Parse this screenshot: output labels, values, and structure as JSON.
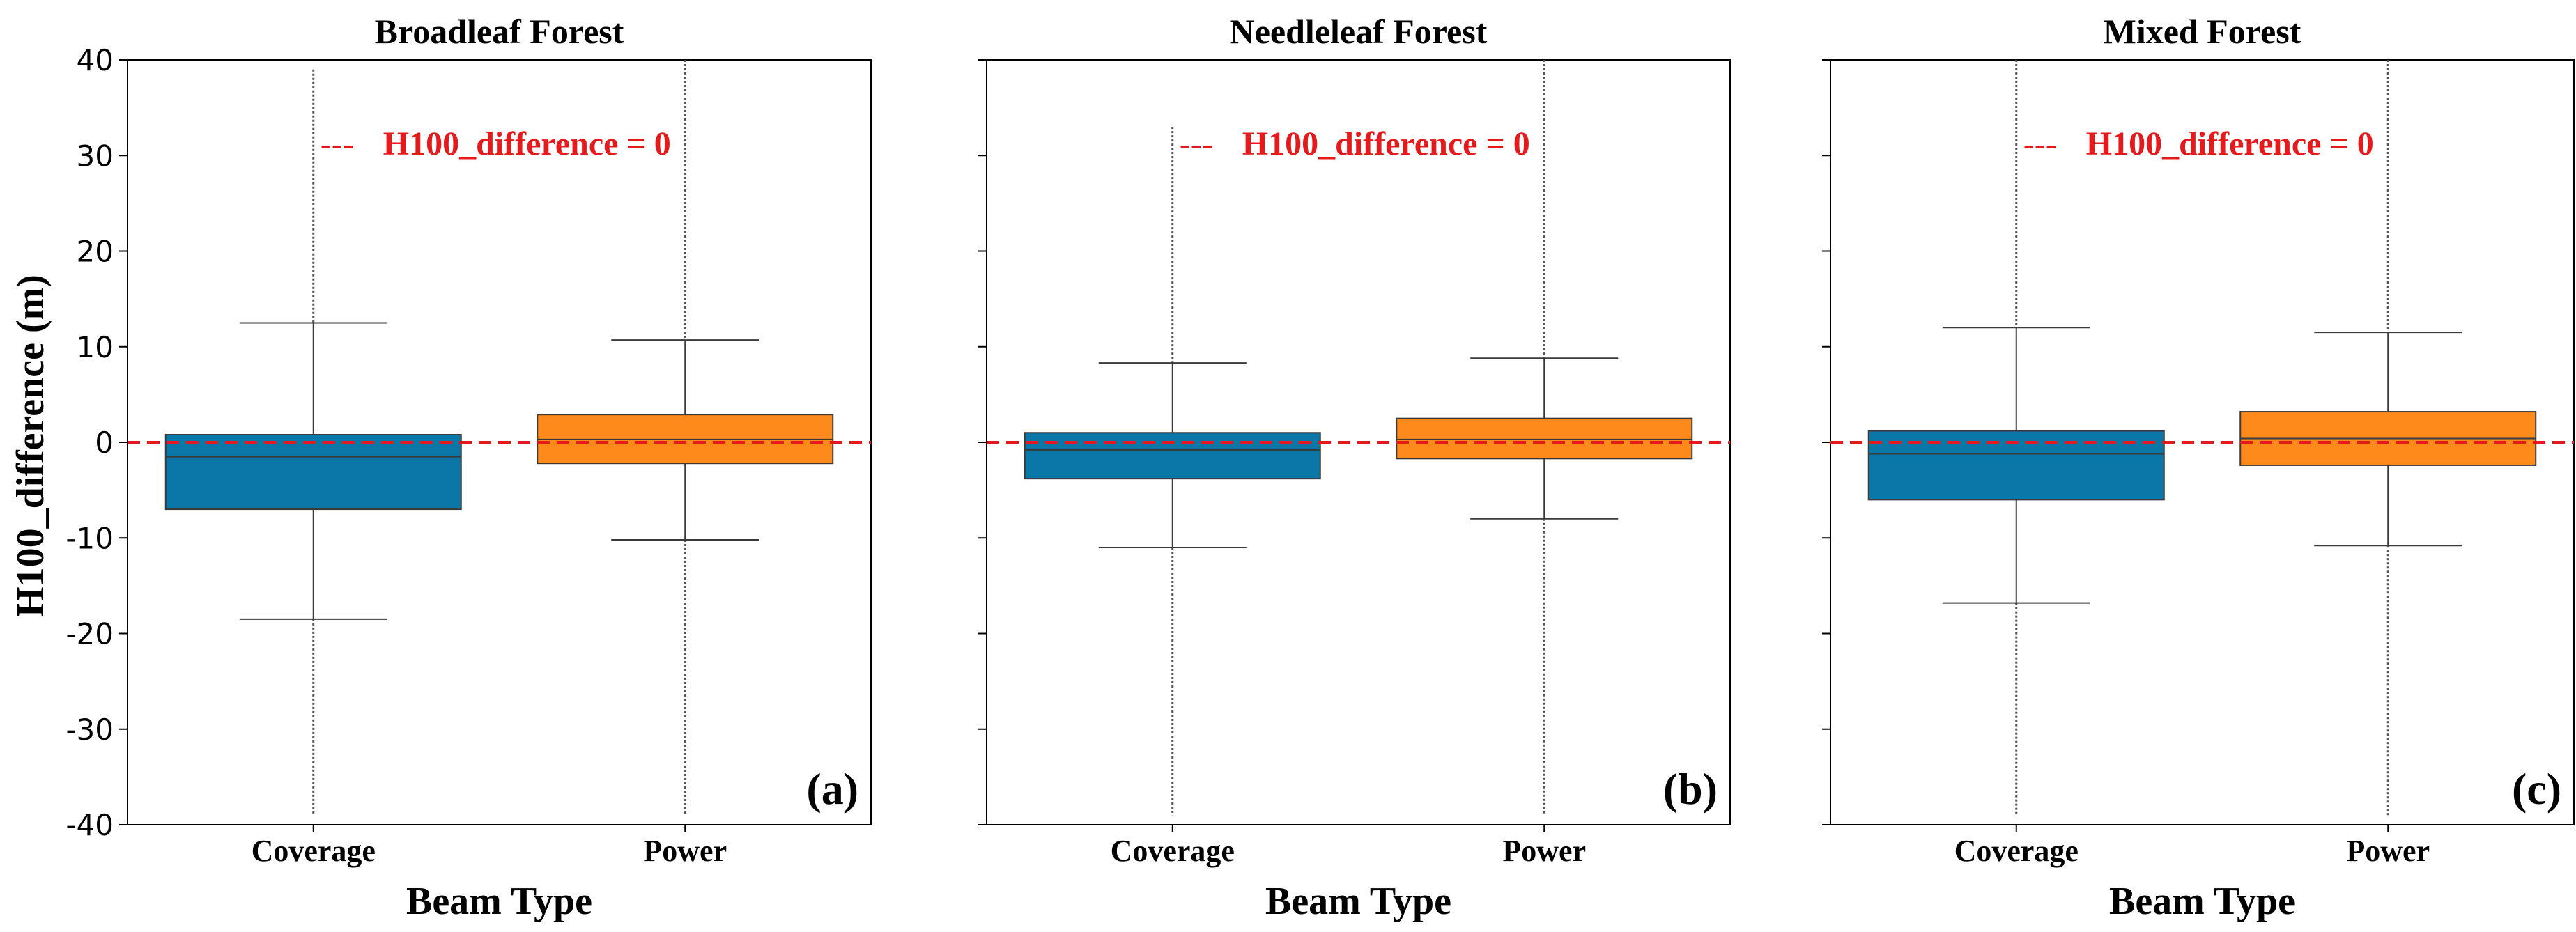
{
  "colors": {
    "coverage": "#0b77a8",
    "power": "#ff8a1c",
    "reference": "#e41a1c",
    "box_edge": "#3a3a3a"
  },
  "shared": {
    "ylabel": "H100_difference (m)",
    "xlabel": "Beam Type",
    "reference_label": "H100_difference = 0",
    "reference_dash": "---"
  },
  "chart_data": [
    {
      "type": "box",
      "title": "Broadleaf Forest",
      "panel_label": "(a)",
      "categories": [
        "Coverage",
        "Power"
      ],
      "ylim": [
        -40,
        40
      ],
      "yticks": [
        -40,
        -30,
        -20,
        -10,
        0,
        10,
        20,
        30,
        40
      ],
      "reference_y": 0,
      "boxes": [
        {
          "category": "Coverage",
          "whisker_low": -18.5,
          "q1": -7.0,
          "median": -1.5,
          "q3": 0.8,
          "whisker_high": 12.5,
          "flier_low": -39,
          "flier_high": 39
        },
        {
          "category": "Power",
          "whisker_low": -10.2,
          "q1": -2.2,
          "median": 0.3,
          "q3": 2.9,
          "whisker_high": 10.7,
          "flier_low": -39,
          "flier_high": 40
        }
      ]
    },
    {
      "type": "box",
      "title": "Needleleaf Forest",
      "panel_label": "(b)",
      "categories": [
        "Coverage",
        "Power"
      ],
      "ylim": [
        -40,
        40
      ],
      "yticks": [
        -40,
        -30,
        -20,
        -10,
        0,
        10,
        20,
        30,
        40
      ],
      "reference_y": 0,
      "boxes": [
        {
          "category": "Coverage",
          "whisker_low": -11.0,
          "q1": -3.8,
          "median": -0.8,
          "q3": 1.0,
          "whisker_high": 8.3,
          "flier_low": -39,
          "flier_high": 33
        },
        {
          "category": "Power",
          "whisker_low": -8.0,
          "q1": -1.7,
          "median": 0.3,
          "q3": 2.5,
          "whisker_high": 8.8,
          "flier_low": -39,
          "flier_high": 40
        }
      ]
    },
    {
      "type": "box",
      "title": "Mixed Forest",
      "panel_label": "(c)",
      "categories": [
        "Coverage",
        "Power"
      ],
      "ylim": [
        -40,
        40
      ],
      "yticks": [
        -40,
        -30,
        -20,
        -10,
        0,
        10,
        20,
        30,
        40
      ],
      "reference_y": 0,
      "boxes": [
        {
          "category": "Coverage",
          "whisker_low": -16.8,
          "q1": -6.0,
          "median": -1.2,
          "q3": 1.2,
          "whisker_high": 12.0,
          "flier_low": -39,
          "flier_high": 40
        },
        {
          "category": "Power",
          "whisker_low": -10.8,
          "q1": -2.4,
          "median": 0.4,
          "q3": 3.2,
          "whisker_high": 11.5,
          "flier_low": -39,
          "flier_high": 40
        }
      ]
    }
  ]
}
